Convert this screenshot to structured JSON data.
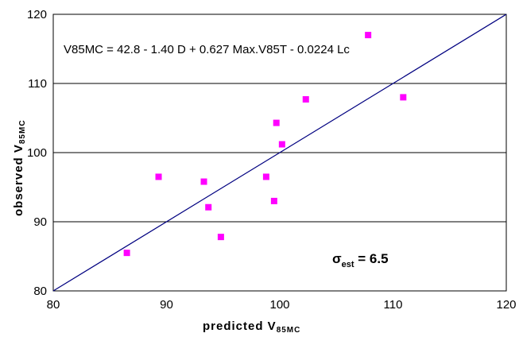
{
  "chart_data": {
    "type": "scatter",
    "xlabel": {
      "main": "predicted V",
      "sub": "85MC"
    },
    "ylabel": {
      "main": "observed V",
      "sub": "85MC"
    },
    "xlim": [
      80,
      120
    ],
    "ylim": [
      80,
      120
    ],
    "x_ticks": [
      "80",
      "90",
      "100",
      "110",
      "120"
    ],
    "y_ticks": [
      "80",
      "90",
      "100",
      "110",
      "120"
    ],
    "grid": "horizontal",
    "equation": "V85MC = 42.8 - 1.40 D + 0.627 Max.V85T - 0.0224 Lc",
    "sigma": {
      "symbol": "σ",
      "sub": "est",
      "value": " = 6.5"
    },
    "reference_line": {
      "from": [
        80,
        80
      ],
      "to": [
        120,
        120
      ],
      "color": "#000080"
    },
    "marker_color": "#ff00ff",
    "points": [
      {
        "x": 86.5,
        "y": 85.5
      },
      {
        "x": 89.3,
        "y": 96.5
      },
      {
        "x": 93.3,
        "y": 95.8
      },
      {
        "x": 93.7,
        "y": 92.1
      },
      {
        "x": 94.8,
        "y": 87.8
      },
      {
        "x": 98.8,
        "y": 96.5
      },
      {
        "x": 99.5,
        "y": 93.0
      },
      {
        "x": 99.7,
        "y": 104.3
      },
      {
        "x": 100.2,
        "y": 101.2
      },
      {
        "x": 102.3,
        "y": 107.7
      },
      {
        "x": 107.8,
        "y": 117.0
      },
      {
        "x": 110.9,
        "y": 108.0
      }
    ]
  }
}
